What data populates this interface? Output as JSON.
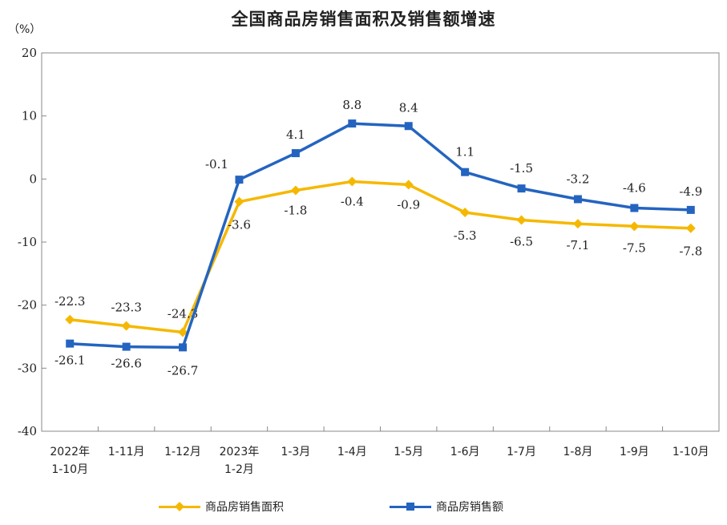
{
  "chart_data": {
    "type": "line",
    "title": "全国商品房销售面积及销售额增速",
    "ylabel": "（%）",
    "ylim": [
      -40,
      20
    ],
    "yticks": [
      "20",
      "10",
      "0",
      "-10",
      "-20",
      "-30",
      "-40"
    ],
    "ytick_values": [
      20,
      10,
      0,
      -10,
      -20,
      -30,
      -40
    ],
    "categories": [
      [
        "2022年",
        "1-10月"
      ],
      [
        "1-11月"
      ],
      [
        "1-12月"
      ],
      [
        "2023年",
        "1-2月"
      ],
      [
        "1-3月"
      ],
      [
        "1-4月"
      ],
      [
        "1-5月"
      ],
      [
        "1-6月"
      ],
      [
        "1-7月"
      ],
      [
        "1-8月"
      ],
      [
        "1-9月"
      ],
      [
        "1-10月"
      ]
    ],
    "series": [
      {
        "name": "商品房销售面积",
        "color": "#F5B800",
        "marker": "diamond",
        "values": [
          -22.3,
          -23.3,
          -24.3,
          -3.6,
          -1.8,
          -0.4,
          -0.9,
          -5.3,
          -6.5,
          -7.1,
          -7.5,
          -7.8
        ],
        "labels": [
          "-22.3",
          "-23.3",
          "-24.3",
          "-3.6",
          "-1.8",
          "-0.4",
          "-0.9",
          "-5.3",
          "-6.5",
          "-7.1",
          "-7.5",
          "-7.8"
        ]
      },
      {
        "name": "商品房销售额",
        "color": "#2464C0",
        "marker": "square",
        "values": [
          -26.1,
          -26.6,
          -26.7,
          -0.1,
          4.1,
          8.8,
          8.4,
          1.1,
          -1.5,
          -3.2,
          -4.6,
          -4.9
        ],
        "labels": [
          "-26.1",
          "-26.6",
          "-26.7",
          "-0.1",
          "4.1",
          "8.8",
          "8.4",
          "1.1",
          "-1.5",
          "-3.2",
          "-4.6",
          "-4.9"
        ]
      }
    ],
    "grid": false,
    "legend_position": "bottom"
  }
}
